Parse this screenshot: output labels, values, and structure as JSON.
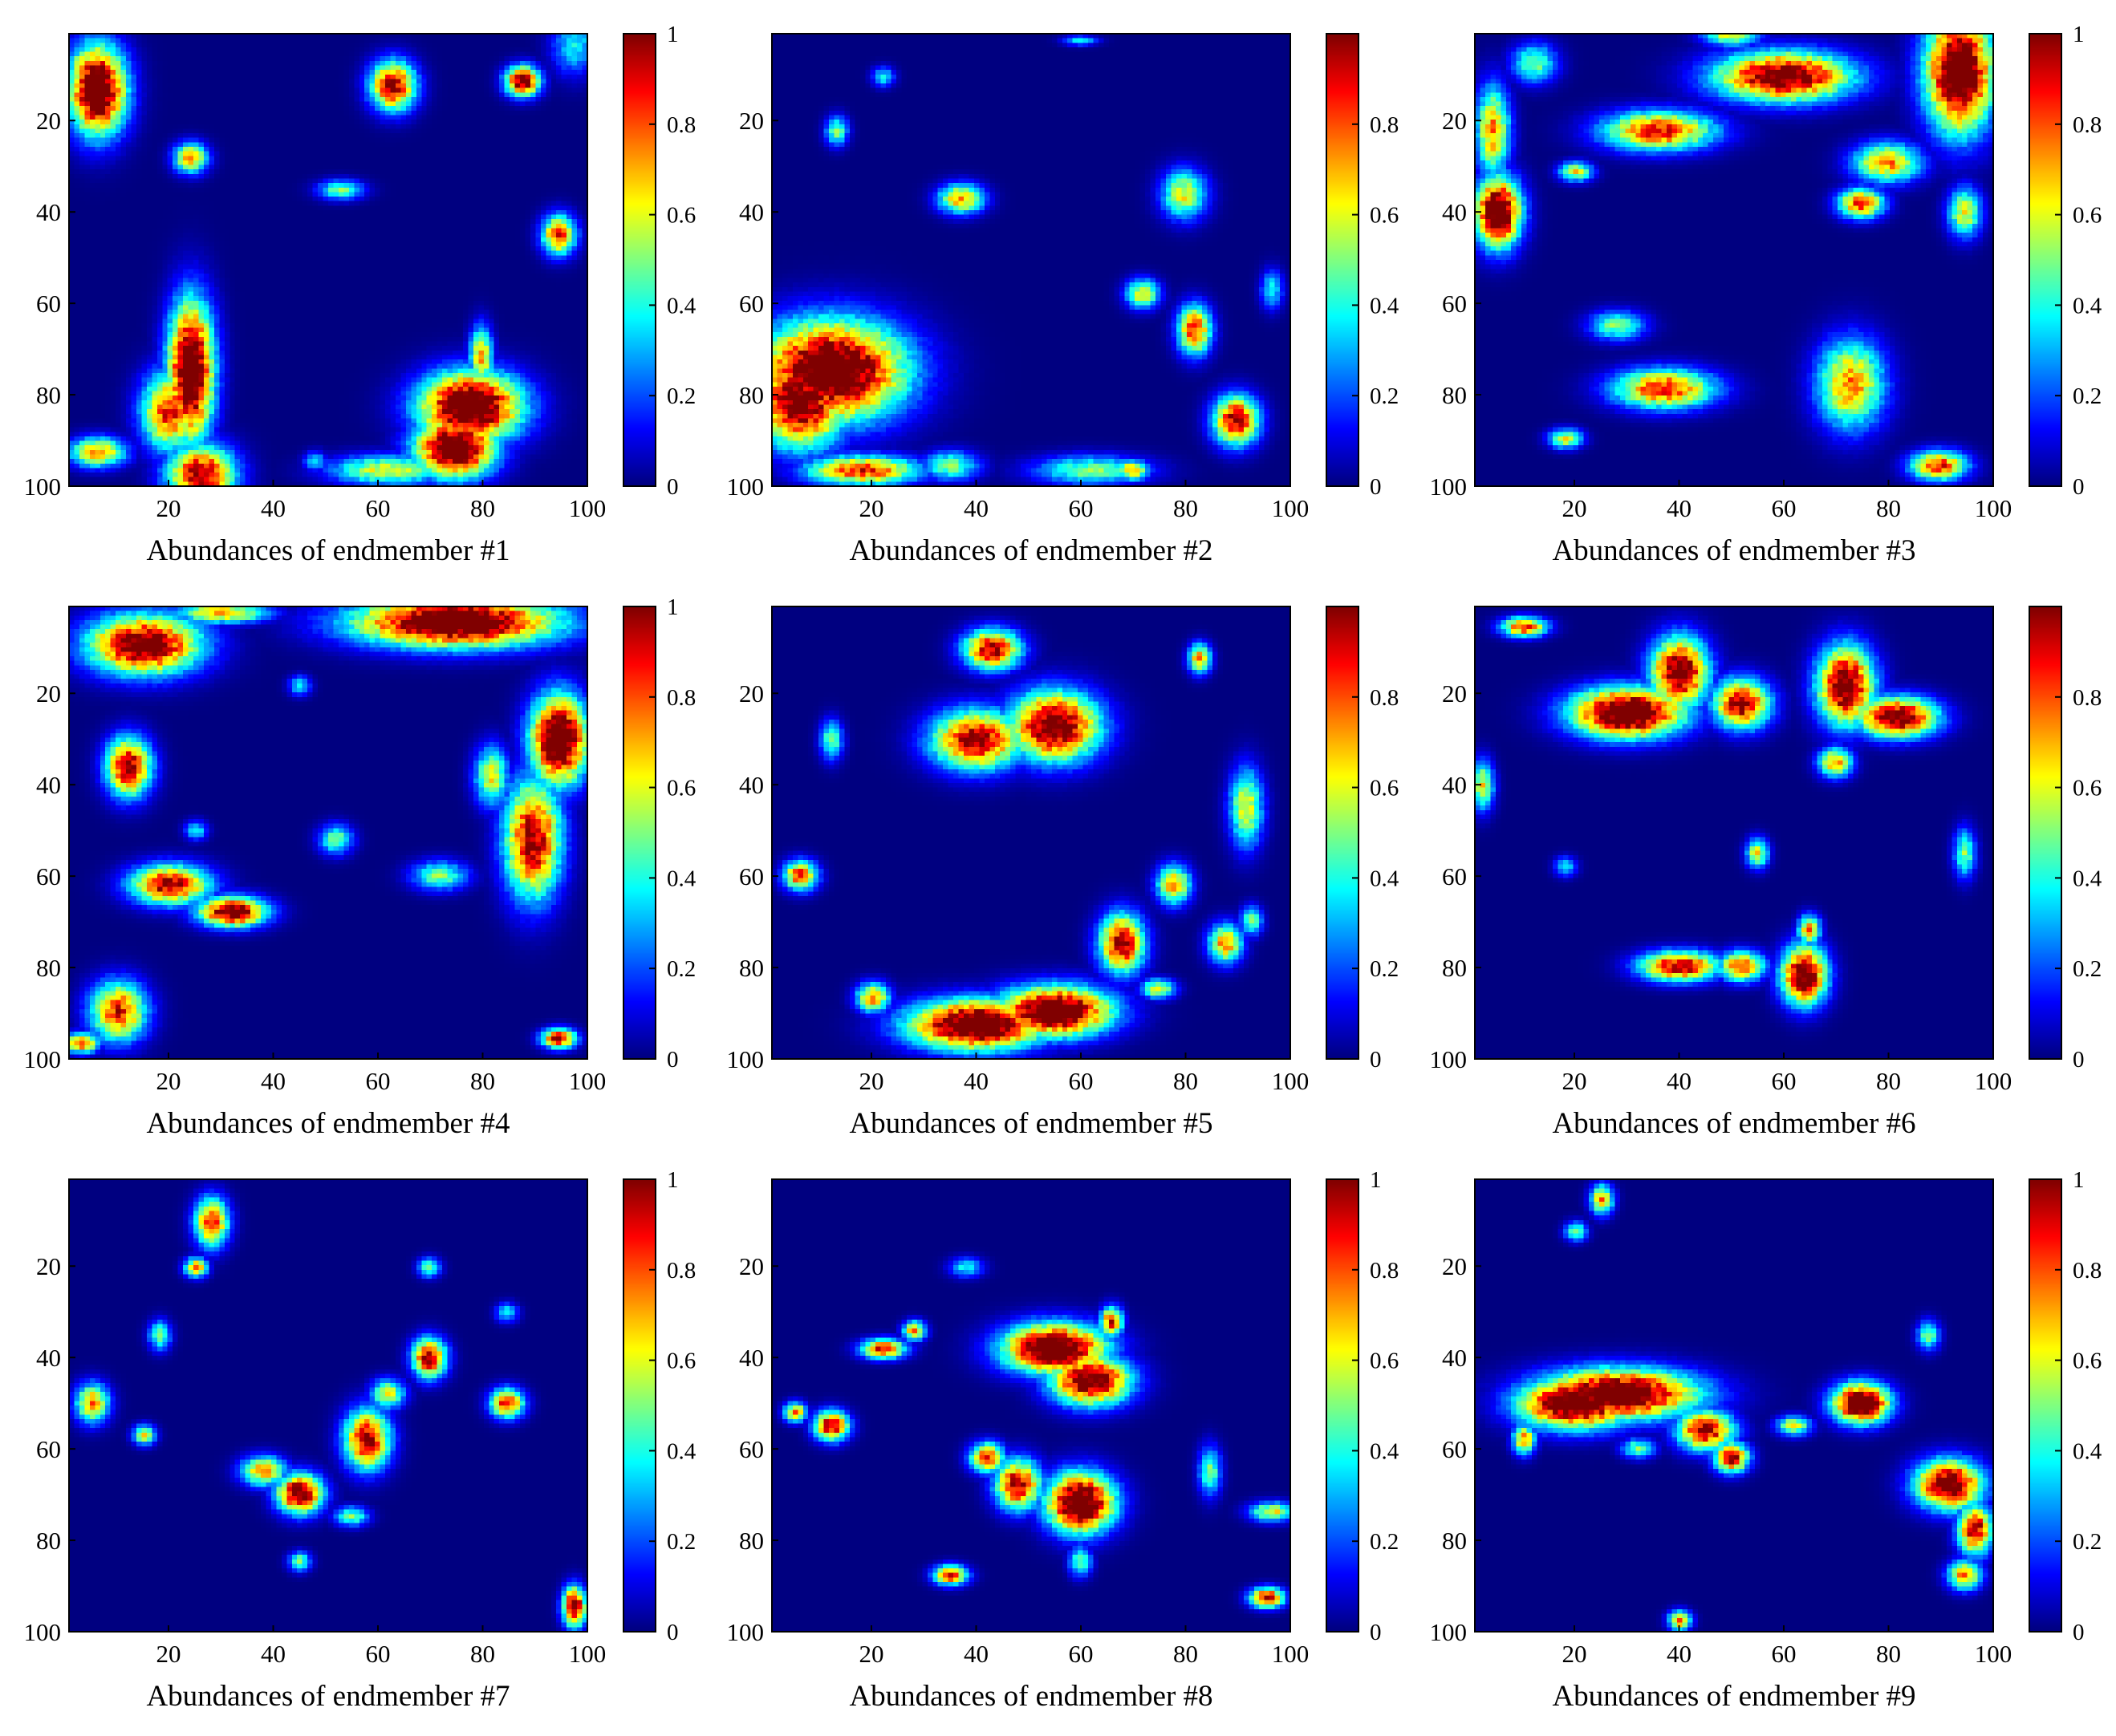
{
  "chart_data": [
    {
      "type": "heatmap",
      "title": "",
      "xlabel": "Abundances of endmember #1",
      "ylabel": "",
      "xlim": [
        1,
        100
      ],
      "ylim": [
        1,
        100
      ],
      "y_direction": "reversed",
      "xticks": [
        "20",
        "40",
        "60",
        "80",
        "100"
      ],
      "yticks": [
        "20",
        "40",
        "60",
        "80",
        "100"
      ],
      "colormap": "jet",
      "colorbar": {
        "min": 0,
        "max": 1,
        "ticks": [
          "0",
          "0.2",
          "0.4",
          "0.6",
          "0.8",
          "1"
        ]
      },
      "grid": false,
      "blobs": [
        [
          6,
          13,
          5,
          9,
          1.0
        ],
        [
          24,
          28,
          3,
          3,
          0.6
        ],
        [
          63,
          12,
          4,
          5,
          0.8
        ],
        [
          98,
          3,
          4,
          6,
          0.3
        ],
        [
          4,
          7,
          4,
          3,
          0.5
        ],
        [
          53,
          35,
          4,
          2,
          0.4
        ],
        [
          88,
          11,
          3,
          3,
          0.9
        ],
        [
          95,
          45,
          3,
          4,
          0.7
        ],
        [
          24,
          75,
          4,
          14,
          1.0
        ],
        [
          20,
          84,
          5,
          8,
          0.7
        ],
        [
          26,
          98,
          6,
          6,
          0.8
        ],
        [
          6,
          93,
          5,
          3,
          0.6
        ],
        [
          78,
          83,
          9,
          7,
          1.0
        ],
        [
          75,
          92,
          7,
          6,
          1.0
        ],
        [
          80,
          72,
          2,
          6,
          0.6
        ],
        [
          62,
          97,
          10,
          3,
          0.5
        ],
        [
          48,
          95,
          2,
          2,
          0.3
        ]
      ]
    },
    {
      "type": "heatmap",
      "title": "",
      "xlabel": "Abundances of endmember #2",
      "ylabel": "",
      "xlim": [
        1,
        100
      ],
      "ylim": [
        1,
        100
      ],
      "y_direction": "reversed",
      "xticks": [
        "20",
        "40",
        "60",
        "80",
        "100"
      ],
      "yticks": [
        "20",
        "40",
        "60",
        "80",
        "100"
      ],
      "colormap": "jet",
      "colorbar": {
        "min": 0,
        "max": 1,
        "ticks": [
          "0",
          "0.2",
          "0.4",
          "0.6",
          "0.8"
        ]
      },
      "grid": false,
      "blobs": [
        [
          12,
          75,
          13,
          10,
          1.0
        ],
        [
          6,
          82,
          8,
          9,
          0.9
        ],
        [
          18,
          97,
          10,
          3,
          0.7
        ],
        [
          37,
          37,
          4,
          3,
          0.6
        ],
        [
          13,
          22,
          2,
          3,
          0.4
        ],
        [
          80,
          36,
          4,
          5,
          0.5
        ],
        [
          82,
          66,
          3,
          5,
          0.7
        ],
        [
          90,
          86,
          4,
          5,
          0.8
        ],
        [
          72,
          58,
          3,
          3,
          0.5
        ],
        [
          62,
          97,
          10,
          3,
          0.4
        ],
        [
          35,
          96,
          5,
          3,
          0.4
        ],
        [
          22,
          10,
          2,
          2,
          0.3
        ],
        [
          60,
          2,
          3,
          1,
          0.3
        ],
        [
          97,
          57,
          2,
          4,
          0.3
        ],
        [
          70,
          97,
          3,
          2,
          0.6
        ]
      ]
    },
    {
      "type": "heatmap",
      "title": "",
      "xlabel": "Abundances of endmember #3",
      "ylabel": "",
      "xlim": [
        1,
        100
      ],
      "ylim": [
        1,
        100
      ],
      "y_direction": "reversed",
      "xticks": [
        "20",
        "40",
        "60",
        "80",
        "100"
      ],
      "yticks": [
        "20",
        "40",
        "60",
        "80",
        "100"
      ],
      "colormap": "jet",
      "colorbar": {
        "min": 0,
        "max": 1,
        "ticks": [
          "0",
          "0.2",
          "0.4",
          "0.6",
          "0.8",
          "1"
        ]
      },
      "grid": false,
      "blobs": [
        [
          94,
          9,
          6,
          12,
          1.0
        ],
        [
          60,
          10,
          12,
          5,
          0.9
        ],
        [
          36,
          22,
          10,
          4,
          0.7
        ],
        [
          5,
          40,
          4,
          7,
          1.0
        ],
        [
          4,
          22,
          3,
          9,
          0.6
        ],
        [
          80,
          29,
          6,
          4,
          0.6
        ],
        [
          75,
          38,
          4,
          3,
          0.7
        ],
        [
          37,
          79,
          9,
          4,
          0.7
        ],
        [
          73,
          78,
          6,
          9,
          0.6
        ],
        [
          18,
          90,
          3,
          2,
          0.5
        ],
        [
          90,
          96,
          5,
          3,
          0.7
        ],
        [
          20,
          31,
          3,
          2,
          0.5
        ],
        [
          95,
          40,
          3,
          5,
          0.5
        ],
        [
          12,
          7,
          4,
          4,
          0.4
        ],
        [
          50,
          1,
          5,
          2,
          0.5
        ],
        [
          28,
          65,
          5,
          3,
          0.4
        ]
      ]
    },
    {
      "type": "heatmap",
      "title": "",
      "xlabel": "Abundances of endmember #4",
      "ylabel": "",
      "xlim": [
        1,
        100
      ],
      "ylim": [
        1,
        100
      ],
      "y_direction": "reversed",
      "xticks": [
        "20",
        "40",
        "60",
        "80",
        "100"
      ],
      "yticks": [
        "20",
        "40",
        "60",
        "80",
        "100"
      ],
      "colormap": "jet",
      "colorbar": {
        "min": 0,
        "max": 1,
        "ticks": [
          "0",
          "0.2",
          "0.4",
          "0.6",
          "0.8",
          "1"
        ]
      },
      "grid": false,
      "blobs": [
        [
          75,
          4,
          18,
          5,
          1.0
        ],
        [
          15,
          9,
          10,
          6,
          0.9
        ],
        [
          95,
          30,
          5,
          9,
          1.0
        ],
        [
          90,
          52,
          5,
          12,
          0.8
        ],
        [
          20,
          62,
          7,
          4,
          0.8
        ],
        [
          32,
          68,
          6,
          3,
          0.9
        ],
        [
          12,
          36,
          4,
          6,
          0.8
        ],
        [
          10,
          90,
          5,
          6,
          0.7
        ],
        [
          82,
          38,
          3,
          6,
          0.5
        ],
        [
          52,
          52,
          3,
          3,
          0.4
        ],
        [
          72,
          60,
          5,
          3,
          0.4
        ],
        [
          95,
          96,
          3,
          2,
          0.8
        ],
        [
          3,
          97,
          3,
          2,
          0.7
        ],
        [
          30,
          2,
          8,
          2,
          0.6
        ],
        [
          45,
          18,
          2,
          2,
          0.3
        ],
        [
          25,
          50,
          2,
          2,
          0.3
        ]
      ]
    },
    {
      "type": "heatmap",
      "title": "",
      "xlabel": "Abundances of endmember #5",
      "ylabel": "",
      "xlim": [
        1,
        100
      ],
      "ylim": [
        1,
        100
      ],
      "y_direction": "reversed",
      "xticks": [
        "20",
        "40",
        "60",
        "80",
        "100"
      ],
      "yticks": [
        "20",
        "40",
        "60",
        "80",
        "100"
      ],
      "colormap": "jet",
      "colorbar": {
        "min": 0,
        "max": 1,
        "ticks": [
          "0",
          "0.2",
          "0.4",
          "0.6",
          "0.8"
        ]
      },
      "grid": false,
      "blobs": [
        [
          40,
          93,
          12,
          5,
          1.0
        ],
        [
          55,
          90,
          10,
          5,
          1.0
        ],
        [
          40,
          30,
          8,
          6,
          0.8
        ],
        [
          55,
          27,
          8,
          7,
          0.9
        ],
        [
          43,
          10,
          5,
          4,
          0.8
        ],
        [
          68,
          75,
          4,
          6,
          0.8
        ],
        [
          78,
          62,
          3,
          4,
          0.6
        ],
        [
          88,
          75,
          3,
          4,
          0.6
        ],
        [
          6,
          60,
          3,
          3,
          0.7
        ],
        [
          83,
          12,
          2,
          3,
          0.6
        ],
        [
          20,
          87,
          3,
          3,
          0.6
        ],
        [
          92,
          45,
          3,
          8,
          0.5
        ],
        [
          75,
          85,
          3,
          2,
          0.5
        ],
        [
          12,
          30,
          2,
          4,
          0.4
        ],
        [
          93,
          70,
          2,
          3,
          0.4
        ]
      ]
    },
    {
      "type": "heatmap",
      "title": "",
      "xlabel": "Abundances of endmember #6",
      "ylabel": "",
      "xlim": [
        1,
        100
      ],
      "ylim": [
        1,
        100
      ],
      "y_direction": "reversed",
      "xticks": [
        "20",
        "40",
        "60",
        "80",
        "100"
      ],
      "yticks": [
        "20",
        "40",
        "60",
        "80",
        "100"
      ],
      "colormap": "jet",
      "colorbar": {
        "min": 0,
        "max": 1,
        "ticks": [
          "0",
          "0.2",
          "0.4",
          "0.6",
          "0.8"
        ]
      },
      "grid": false,
      "blobs": [
        [
          30,
          24,
          10,
          5,
          1.0
        ],
        [
          40,
          15,
          5,
          7,
          0.9
        ],
        [
          52,
          22,
          5,
          5,
          0.8
        ],
        [
          72,
          18,
          5,
          8,
          0.9
        ],
        [
          82,
          25,
          7,
          4,
          0.9
        ],
        [
          70,
          35,
          3,
          3,
          0.6
        ],
        [
          40,
          80,
          7,
          3,
          0.8
        ],
        [
          52,
          80,
          4,
          3,
          0.7
        ],
        [
          64,
          82,
          4,
          6,
          0.9
        ],
        [
          65,
          72,
          2,
          3,
          0.6
        ],
        [
          10,
          5,
          4,
          2,
          0.7
        ],
        [
          2,
          40,
          2,
          5,
          0.5
        ],
        [
          55,
          55,
          2,
          3,
          0.5
        ],
        [
          95,
          55,
          2,
          5,
          0.4
        ],
        [
          18,
          58,
          2,
          2,
          0.3
        ]
      ]
    },
    {
      "type": "heatmap",
      "title": "",
      "xlabel": "Abundances of endmember #7",
      "ylabel": "",
      "xlim": [
        1,
        100
      ],
      "ylim": [
        1,
        100
      ],
      "y_direction": "reversed",
      "xticks": [
        "20",
        "40",
        "60",
        "80",
        "100"
      ],
      "yticks": [
        "20",
        "40",
        "60",
        "80",
        "100"
      ],
      "colormap": "jet",
      "colorbar": {
        "min": 0,
        "max": 1,
        "ticks": [
          "0",
          "0.2",
          "0.4",
          "0.6",
          "0.8",
          "1"
        ]
      },
      "grid": false,
      "blobs": [
        [
          45,
          70,
          4,
          4,
          0.9
        ],
        [
          58,
          58,
          4,
          6,
          0.8
        ],
        [
          70,
          40,
          3,
          4,
          0.8
        ],
        [
          85,
          50,
          3,
          3,
          0.7
        ],
        [
          28,
          10,
          3,
          5,
          0.7
        ],
        [
          25,
          20,
          2,
          2,
          0.6
        ],
        [
          5,
          50,
          3,
          4,
          0.6
        ],
        [
          15,
          57,
          2,
          2,
          0.5
        ],
        [
          38,
          65,
          4,
          3,
          0.6
        ],
        [
          55,
          75,
          3,
          2,
          0.4
        ],
        [
          98,
          95,
          2,
          4,
          0.9
        ],
        [
          18,
          35,
          2,
          3,
          0.4
        ],
        [
          70,
          20,
          2,
          2,
          0.4
        ],
        [
          45,
          85,
          2,
          2,
          0.4
        ],
        [
          85,
          30,
          2,
          2,
          0.3
        ],
        [
          62,
          48,
          3,
          3,
          0.5
        ]
      ]
    },
    {
      "type": "heatmap",
      "title": "",
      "xlabel": "Abundances of endmember #8",
      "ylabel": "",
      "xlim": [
        1,
        100
      ],
      "ylim": [
        1,
        100
      ],
      "y_direction": "reversed",
      "xticks": [
        "20",
        "40",
        "60",
        "80",
        "100"
      ],
      "yticks": [
        "20",
        "40",
        "60",
        "80",
        "100"
      ],
      "colormap": "jet",
      "colorbar": {
        "min": 0,
        "max": 1,
        "ticks": [
          "0",
          "0.2",
          "0.4",
          "0.6",
          "0.8",
          "1"
        ]
      },
      "grid": false,
      "blobs": [
        [
          55,
          38,
          9,
          5,
          1.0
        ],
        [
          62,
          45,
          7,
          5,
          0.9
        ],
        [
          66,
          32,
          2,
          3,
          0.7
        ],
        [
          60,
          72,
          6,
          6,
          1.0
        ],
        [
          48,
          68,
          4,
          5,
          0.8
        ],
        [
          42,
          62,
          3,
          3,
          0.7
        ],
        [
          12,
          55,
          3,
          3,
          0.8
        ],
        [
          5,
          52,
          2,
          2,
          0.6
        ],
        [
          22,
          38,
          4,
          2,
          0.7
        ],
        [
          28,
          34,
          2,
          2,
          0.6
        ],
        [
          35,
          88,
          3,
          2,
          0.7
        ],
        [
          96,
          93,
          3,
          2,
          0.8
        ],
        [
          97,
          74,
          4,
          2,
          0.5
        ],
        [
          85,
          65,
          2,
          5,
          0.4
        ],
        [
          38,
          20,
          3,
          2,
          0.3
        ],
        [
          60,
          85,
          2,
          3,
          0.4
        ]
      ]
    },
    {
      "type": "heatmap",
      "title": "",
      "xlabel": "Abundances of endmember #9",
      "ylabel": "",
      "xlim": [
        1,
        100
      ],
      "ylim": [
        1,
        100
      ],
      "y_direction": "reversed",
      "xticks": [
        "20",
        "40",
        "60",
        "80",
        "100"
      ],
      "yticks": [
        "20",
        "40",
        "60",
        "80",
        "100"
      ],
      "colormap": "jet",
      "colorbar": {
        "min": 0,
        "max": 1,
        "ticks": [
          "0",
          "0.2",
          "0.4",
          "0.6",
          "0.8",
          "1"
        ]
      },
      "grid": false,
      "blobs": [
        [
          28,
          48,
          14,
          5,
          1.0
        ],
        [
          20,
          50,
          10,
          5,
          1.0
        ],
        [
          45,
          56,
          5,
          4,
          0.8
        ],
        [
          50,
          62,
          3,
          3,
          0.8
        ],
        [
          75,
          50,
          5,
          4,
          1.0
        ],
        [
          92,
          68,
          6,
          5,
          0.9
        ],
        [
          97,
          78,
          3,
          5,
          0.8
        ],
        [
          95,
          88,
          3,
          3,
          0.6
        ],
        [
          10,
          58,
          2,
          3,
          0.6
        ],
        [
          25,
          5,
          2,
          3,
          0.6
        ],
        [
          20,
          12,
          2,
          2,
          0.4
        ],
        [
          40,
          98,
          2,
          2,
          0.6
        ],
        [
          88,
          35,
          2,
          3,
          0.4
        ],
        [
          62,
          55,
          3,
          2,
          0.5
        ],
        [
          32,
          60,
          3,
          2,
          0.4
        ]
      ]
    }
  ]
}
